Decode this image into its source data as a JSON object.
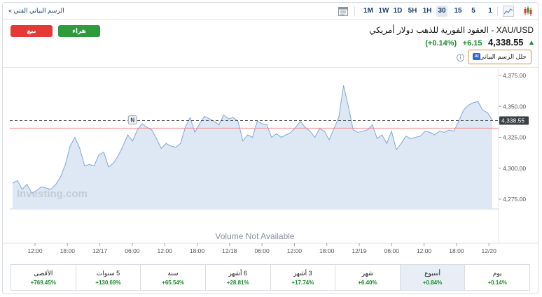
{
  "toolbar": {
    "timeframes": [
      {
        "label": "1",
        "active": false
      },
      {
        "label": "5",
        "active": false
      },
      {
        "label": "15",
        "active": false
      },
      {
        "label": "30",
        "active": true
      },
      {
        "label": "1H",
        "active": false
      },
      {
        "label": "5H",
        "active": false
      },
      {
        "label": "1D",
        "active": false
      },
      {
        "label": "1W",
        "active": false
      },
      {
        "label": "1M",
        "active": false
      }
    ],
    "tech_chart_link": "الرسم البياني الفني »"
  },
  "actions": {
    "sell_label": "بيع",
    "buy_label": "هراء"
  },
  "instrument": {
    "title": "XAU/USD - العقود الفورية للذهب دولار أمريكي",
    "price": "4,338.55",
    "change": "+6.15",
    "change_pct": "(+0.14%)"
  },
  "analyze_label": "حلل الرسم البياني",
  "ai_badge": "AI",
  "info_symbol": "i",
  "colors": {
    "line": "#7fa6d6",
    "area": "#dde8f4",
    "up": "#1e8a2e",
    "sell": "#e53935",
    "buy": "#2e9b3d",
    "ref_line": "#f08a8a"
  },
  "chart_data": {
    "type": "area",
    "watermark": "Investing.com",
    "volume_note": "Volume Not Available",
    "x_ticks": [
      "12:00",
      "18:00",
      "12/17",
      "06:00",
      "12:00",
      "18:00",
      "12/18",
      "06:00",
      "12:00",
      "18:00",
      "12/19",
      "06:00",
      "12:00",
      "18:00",
      "12/20"
    ],
    "y_ticks": [
      "4,375.00",
      "4,350.00",
      "4,325.00",
      "4,300.00",
      "4,275.00"
    ],
    "y_tick_values": [
      4375,
      4350,
      4325,
      4300,
      4275
    ],
    "ylim": [
      4268,
      4380
    ],
    "x_range": [
      0,
      91
    ],
    "last_price": 4338.55,
    "last_price_label": "4,338.55",
    "reference_price": 4332.4,
    "news_marker": {
      "label": "N",
      "x": 25,
      "y": 4338.5
    },
    "values": [
      4288,
      4290,
      4283,
      4287,
      4280,
      4282,
      4285,
      4284,
      4283,
      4287,
      4293,
      4303,
      4318,
      4325,
      4316,
      4302,
      4303,
      4302,
      4311,
      4313,
      4301,
      4304,
      4310,
      4318,
      4327,
      4322,
      4331,
      4336,
      4333,
      4331,
      4324,
      4316,
      4320,
      4318,
      4317,
      4320,
      4333,
      4341,
      4329,
      4336,
      4342,
      4340,
      4338,
      4335,
      4343,
      4340,
      4341,
      4338,
      4322,
      4327,
      4325,
      4338,
      4336,
      4335,
      4325,
      4328,
      4325,
      4327,
      4329,
      4333,
      4338,
      4333,
      4330,
      4325,
      4332,
      4330,
      4323,
      4332,
      4341,
      4367,
      4350,
      4331,
      4329,
      4330,
      4331,
      4335,
      4324,
      4327,
      4320,
      4330,
      4315,
      4320,
      4326,
      4324,
      4325,
      4326,
      4330,
      4329,
      4327,
      4330,
      4329,
      4331,
      4330,
      4338,
      4347,
      4351,
      4353,
      4354,
      4347,
      4345,
      4339
    ]
  },
  "periods": [
    {
      "label": "يوم",
      "value": "+0.14%",
      "selected": false
    },
    {
      "label": "أسبوع",
      "value": "+0.84%",
      "selected": true
    },
    {
      "label": "شهر",
      "value": "+6.40%",
      "selected": false
    },
    {
      "label": "3 أشهر",
      "value": "+17.74%",
      "selected": false
    },
    {
      "label": "6 أشهر",
      "value": "+28.81%",
      "selected": false
    },
    {
      "label": "سنة",
      "value": "+65.54%",
      "selected": false
    },
    {
      "label": "5 سنوات",
      "value": "+130.69%",
      "selected": false
    },
    {
      "label": "الأقصى",
      "value": "+769.45%",
      "selected": false
    }
  ]
}
